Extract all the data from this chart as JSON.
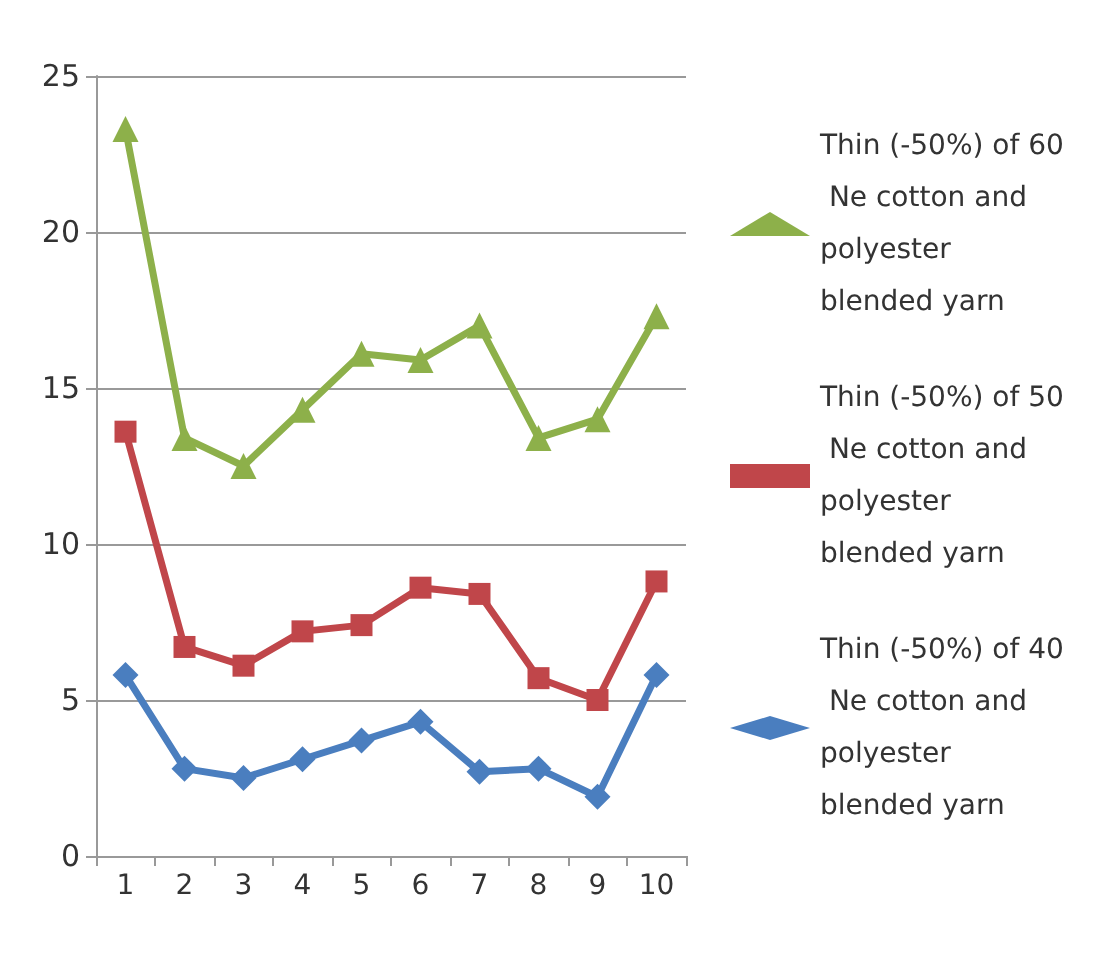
{
  "chart_data": {
    "type": "line",
    "categories": [
      "1",
      "2",
      "3",
      "4",
      "5",
      "6",
      "7",
      "8",
      "9",
      "10"
    ],
    "ylim": [
      0,
      25
    ],
    "yticks": [
      0,
      5,
      10,
      15,
      20,
      25
    ],
    "grid": "y",
    "legend": "right",
    "line_style": "solid",
    "series": [
      {
        "name": "Thin (-50%) of 60 Ne cotton and polyester blended yarn",
        "color": "#8db04a",
        "marker": "triangle",
        "values": [
          23.3,
          13.4,
          12.5,
          14.3,
          16.1,
          15.9,
          17.0,
          13.4,
          14.0,
          17.3
        ]
      },
      {
        "name": "Thin (-50%) of 50 Ne cotton and polyester blended yarn",
        "color": "#c0464a",
        "marker": "square",
        "values": [
          13.6,
          6.7,
          6.1,
          7.2,
          7.4,
          8.6,
          8.4,
          5.7,
          5.0,
          8.8
        ]
      },
      {
        "name": "Thin (-50%) of 40 Ne cotton and polyester blended yarn",
        "color": "#4a7ebf",
        "marker": "diamond",
        "values": [
          5.8,
          2.8,
          2.5,
          3.1,
          3.7,
          4.3,
          2.7,
          2.8,
          1.9,
          5.8
        ]
      }
    ]
  }
}
